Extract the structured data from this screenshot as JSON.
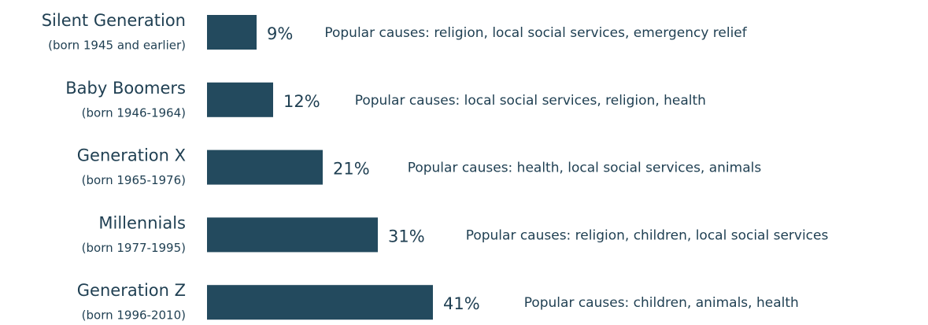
{
  "chart_data": {
    "type": "bar",
    "orientation": "horizontal",
    "categories": [
      "Silent Generation",
      "Baby Boomers",
      "Generation X",
      "Millennials",
      "Generation Z"
    ],
    "category_subtitles": [
      "(born 1945 and earlier)",
      "(born 1946-1964)",
      "(born 1965-1976)",
      "(born 1977-1995)",
      "(born 1996-2010)"
    ],
    "values": [
      9,
      12,
      21,
      31,
      41
    ],
    "value_labels": [
      "9%",
      "12%",
      "21%",
      "31%",
      "41%"
    ],
    "annotations": [
      "Popular causes: religion, local social services, emergency relief",
      "Popular causes: local social services, religion, health",
      "Popular causes: health, local social services, animals",
      "Popular causes: religion, children, local social services",
      "Popular causes: children, animals, health"
    ],
    "color": "#234a5e"
  }
}
